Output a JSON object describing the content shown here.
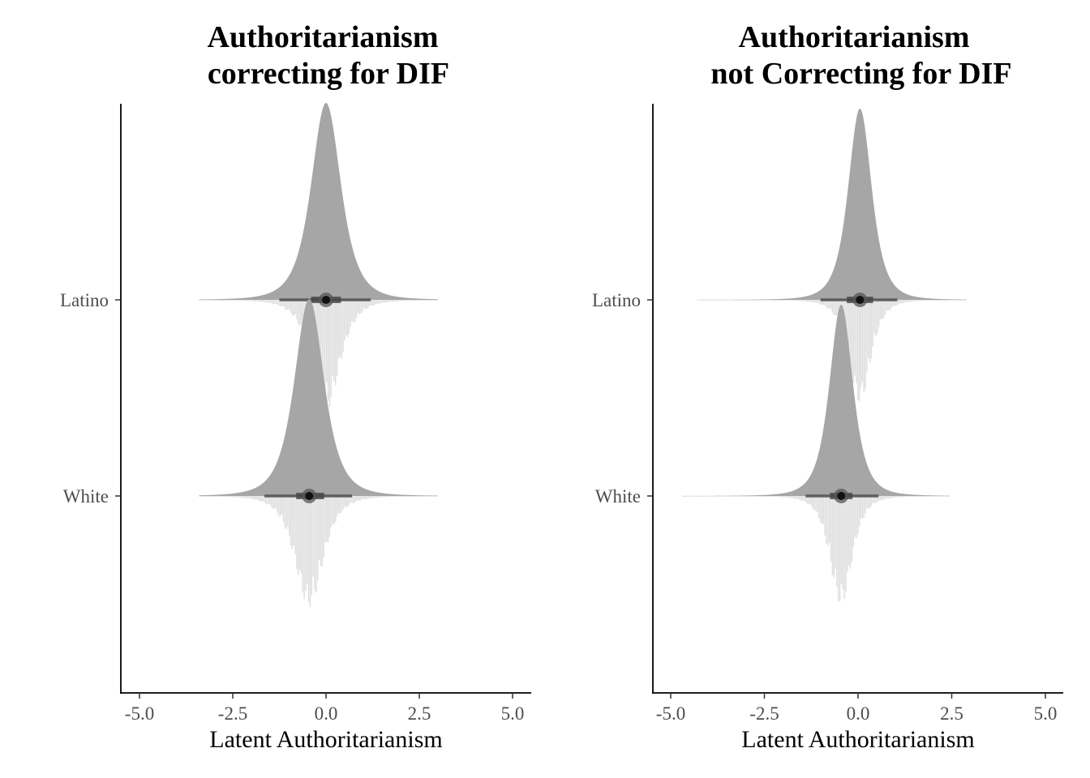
{
  "chart_data": [
    {
      "type": "density",
      "title_lines": [
        "Authoritarianism",
        "correcting for DIF"
      ],
      "xlabel": "Latent Authoritarianism",
      "ylabel": "",
      "xlim": [
        -5.5,
        5.5
      ],
      "xticks": [
        -5.0,
        -2.5,
        0.0,
        2.5,
        5.0
      ],
      "xtick_labels": [
        "-5.0",
        "-2.5",
        "0.0",
        "2.5",
        "5.0"
      ],
      "categories": [
        "Latino",
        "White"
      ],
      "legend": "none",
      "grid": false,
      "series": [
        {
          "name": "Latino",
          "median": 0.0,
          "interval_66": [
            -0.4,
            0.4
          ],
          "interval_95": [
            -1.25,
            1.2
          ],
          "range": [
            -3.4,
            3.0
          ],
          "sd": 0.42,
          "hist_depth": 0.5
        },
        {
          "name": "White",
          "median": -0.45,
          "interval_66": [
            -0.8,
            -0.05
          ],
          "interval_95": [
            -1.65,
            0.7
          ],
          "range": [
            -3.4,
            3.0
          ],
          "sd": 0.42,
          "hist_depth": 0.5
        }
      ]
    },
    {
      "type": "density",
      "title_lines": [
        "Authoritarianism",
        "not Correcting for DIF"
      ],
      "xlabel": "Latent Authoritarianism",
      "ylabel": "",
      "xlim": [
        -5.5,
        5.5
      ],
      "xticks": [
        -5.0,
        -2.5,
        0.0,
        2.5,
        5.0
      ],
      "xtick_labels": [
        "-5.0",
        "-2.5",
        "0.0",
        "2.5",
        "5.0"
      ],
      "categories": [
        "Latino",
        "White"
      ],
      "legend": "none",
      "grid": false,
      "series": [
        {
          "name": "Latino",
          "median": 0.05,
          "interval_66": [
            -0.3,
            0.4
          ],
          "interval_95": [
            -1.0,
            1.05
          ],
          "range": [
            -4.3,
            2.9
          ],
          "sd": 0.33,
          "hist_depth": 0.47
        },
        {
          "name": "White",
          "median": -0.45,
          "interval_66": [
            -0.75,
            -0.15
          ],
          "interval_95": [
            -1.4,
            0.55
          ],
          "range": [
            -4.7,
            2.45
          ],
          "sd": 0.33,
          "hist_depth": 0.5
        }
      ]
    }
  ]
}
